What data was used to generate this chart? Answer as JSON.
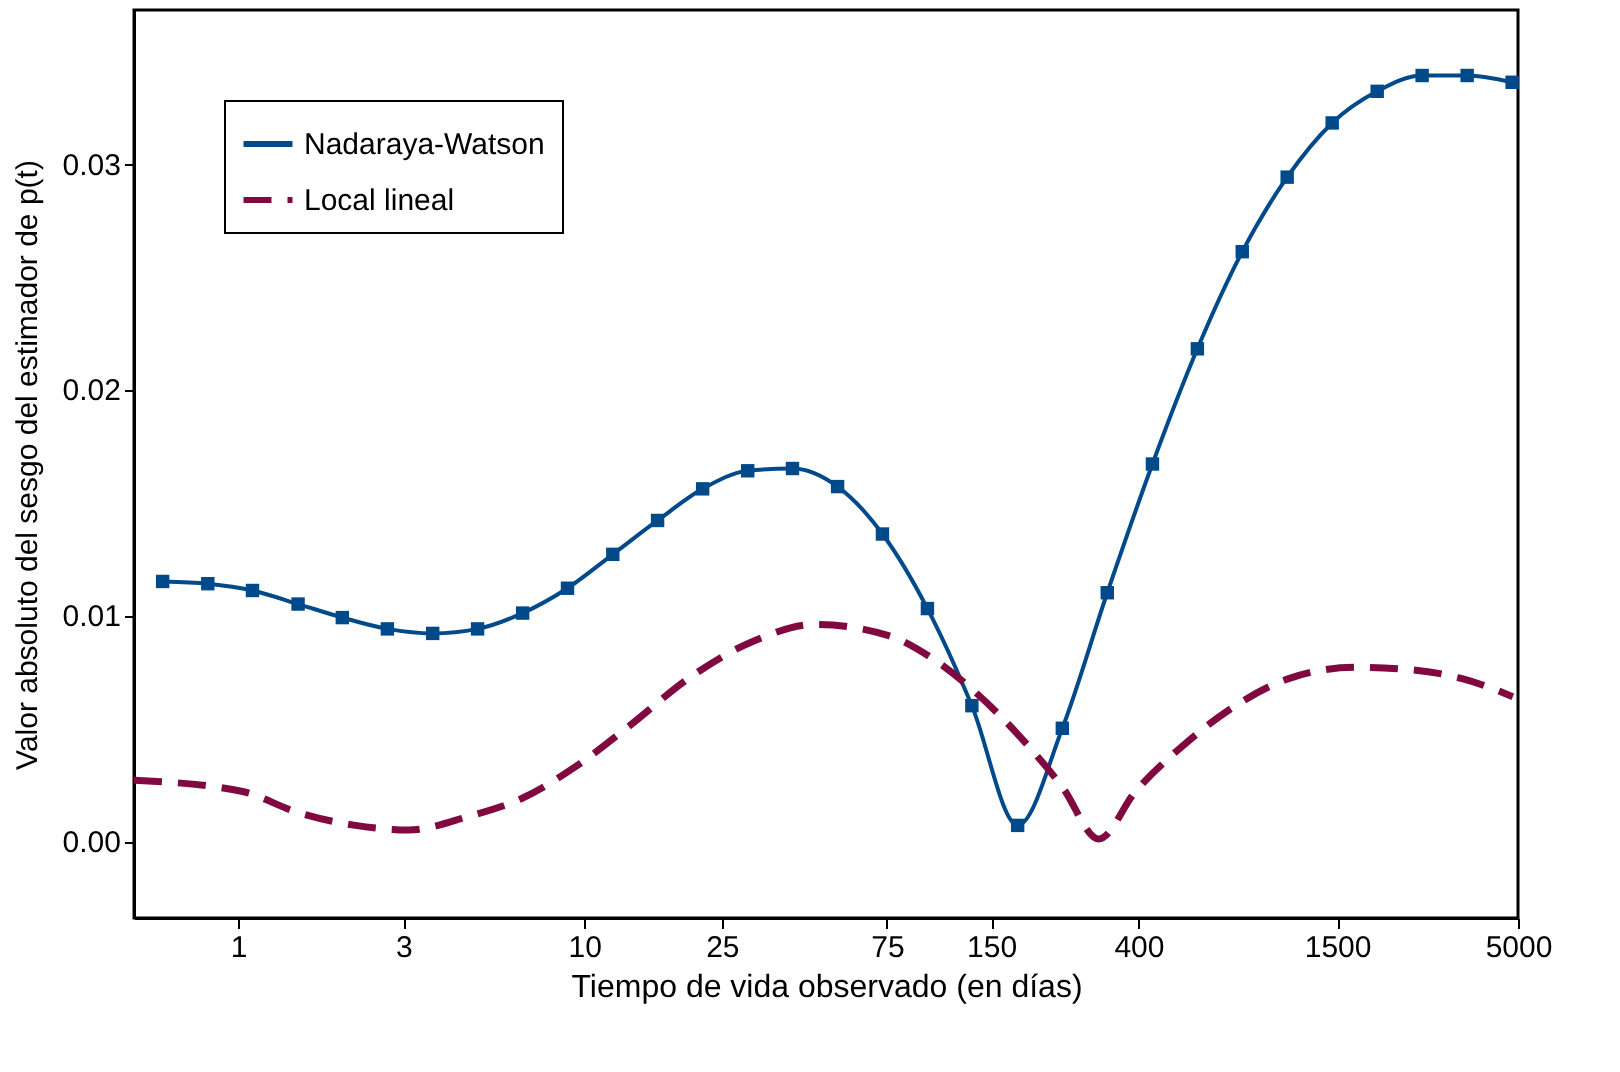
{
  "chart_data": {
    "type": "line",
    "xlabel": "Tiempo de vida observado (en días)",
    "ylabel": "Valor absoluto del sesgo del estimador de p(t)",
    "log": "x",
    "xlim": [
      0.5,
      5000
    ],
    "xticks": [
      1,
      3,
      10,
      25,
      75,
      150,
      400,
      1500,
      5000
    ],
    "ylim": [
      -0.0034,
      0.0368
    ],
    "yticks": [
      {
        "value": 0,
        "label": "0.00"
      },
      {
        "value": 0.01,
        "label": "0.01"
      },
      {
        "value": 0.02,
        "label": "0.02"
      },
      {
        "value": 0.03,
        "label": "0.03"
      }
    ],
    "grid": false,
    "legend": "top left",
    "series": [
      {
        "name": "Nadaraya-Watson",
        "color": "#004a8c",
        "marker": "square",
        "line_style": "solid",
        "x": [
          0.605,
          0.817,
          1.1,
          1.49,
          2.0,
          2.7,
          3.65,
          4.92,
          6.64,
          8.95,
          12.1,
          16.3,
          22.0,
          29.7,
          40.0,
          54.0,
          72.8,
          98.2,
          132,
          179,
          241,
          325,
          439,
          592,
          798,
          1076,
          1452,
          1959,
          2642,
          3565,
          4808
        ],
        "values": [
          0.0115,
          0.0114,
          0.0111,
          0.0105,
          0.0099,
          0.0094,
          0.0092,
          0.0094,
          0.0101,
          0.0112,
          0.0127,
          0.0142,
          0.0156,
          0.0164,
          0.0165,
          0.0157,
          0.0136,
          0.0103,
          0.006,
          0.0007,
          0.005,
          0.011,
          0.0167,
          0.0218,
          0.0261,
          0.0294,
          0.0318,
          0.0332,
          0.0339,
          0.0339,
          0.0336
        ]
      },
      {
        "name": "Local lineal",
        "color": "#80093f",
        "marker": "none",
        "line_style": "dashed",
        "x": [
          0.5,
          1.03,
          1.47,
          2.18,
          3.11,
          4.64,
          6.62,
          9.44,
          13.5,
          20.0,
          31.3,
          46.7,
          75.9,
          99.0,
          135,
          185,
          241,
          307,
          392,
          535,
          763,
          1087,
          1696,
          2417,
          3450,
          4830
        ],
        "values": [
          0.0027,
          0.0022,
          0.0013,
          0.0007,
          0.0005,
          0.0011,
          0.0019,
          0.0033,
          0.0051,
          0.0072,
          0.0089,
          0.0096,
          0.0091,
          0.0082,
          0.0066,
          0.0045,
          0.0024,
          0.0001,
          0.0022,
          0.0042,
          0.006,
          0.0072,
          0.0077,
          0.0076,
          0.0072,
          0.0064
        ]
      }
    ]
  }
}
